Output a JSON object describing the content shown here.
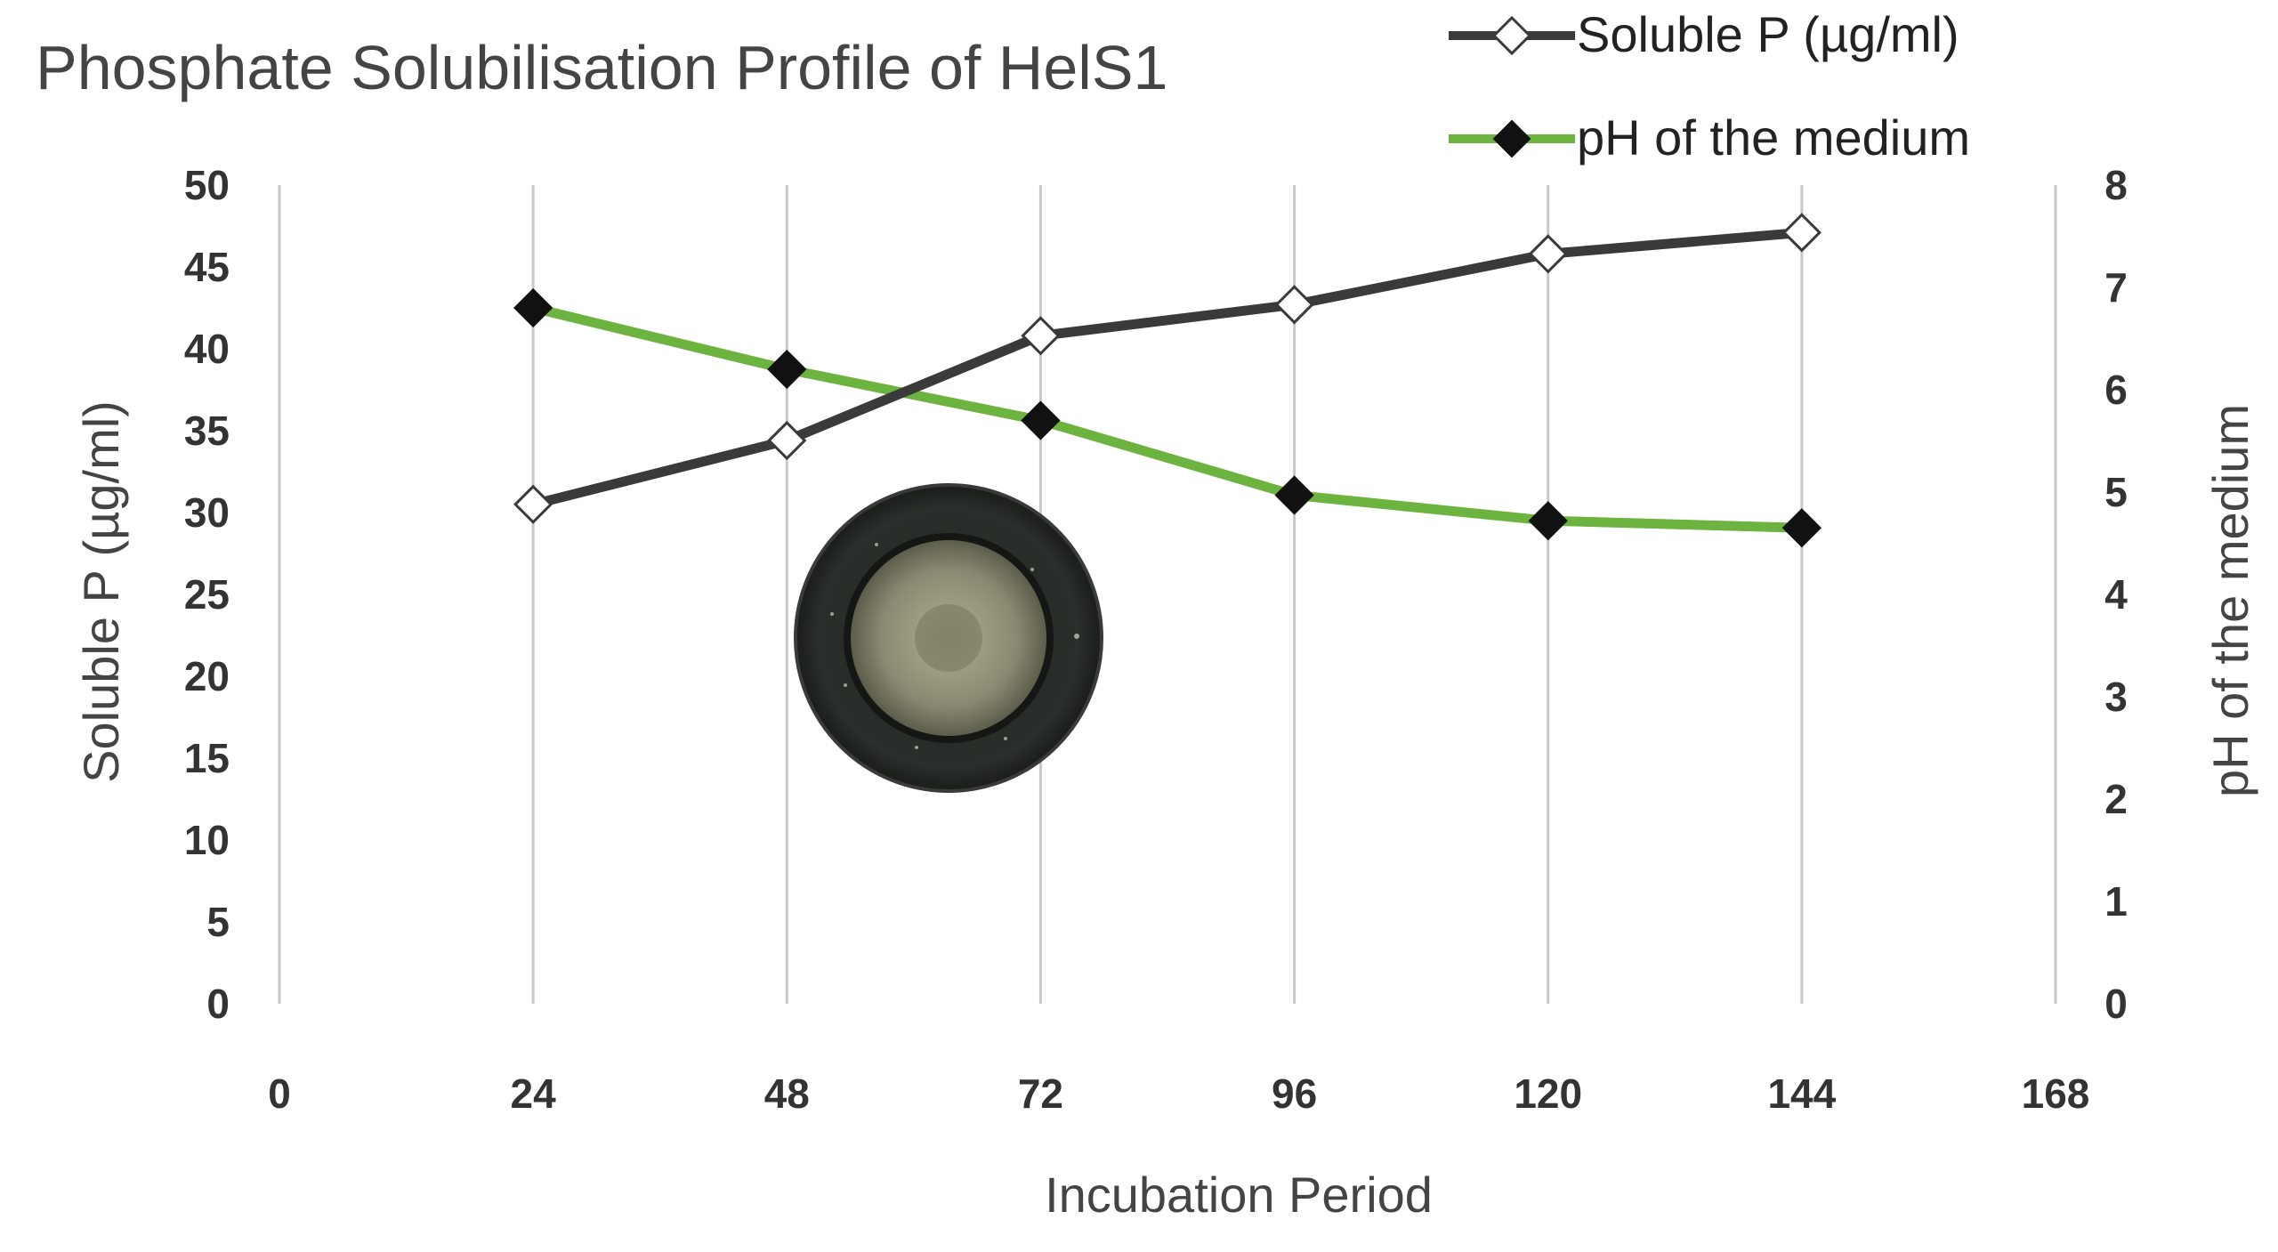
{
  "chart_data": {
    "type": "line",
    "title": "Phosphate Solubilisation Profile of HelS1",
    "xlabel": "Incubation Period",
    "ylabel": "Soluble P (µg/ml)",
    "ylabel_right": "pH of the medium",
    "x": [
      24,
      48,
      72,
      96,
      120,
      144
    ],
    "xticks": [
      0,
      24,
      48,
      72,
      96,
      120,
      144,
      168
    ],
    "xlim": [
      0,
      168
    ],
    "ylim": [
      0,
      50
    ],
    "yticks": [
      0,
      5,
      10,
      15,
      20,
      25,
      30,
      35,
      40,
      45,
      50
    ],
    "ylim_right": [
      0,
      8
    ],
    "yticks_right": [
      0,
      1,
      2,
      3,
      4,
      5,
      6,
      7,
      8
    ],
    "grid": "vertical",
    "legend_position": "top-right",
    "series": [
      {
        "name": "Soluble P (µg/ml)",
        "axis": "left",
        "color": "#3a3a3a",
        "marker": "diamond-open",
        "values": [
          30.5,
          34.4,
          40.8,
          42.7,
          45.8,
          47.1
        ]
      },
      {
        "name": "pH of the medium",
        "axis": "right",
        "color": "#6db33f",
        "marker": "diamond-filled",
        "values": [
          6.8,
          6.2,
          5.7,
          4.97,
          4.72,
          4.65
        ]
      }
    ]
  },
  "inset": {
    "name": "bacterial colony halo on agar plate"
  }
}
